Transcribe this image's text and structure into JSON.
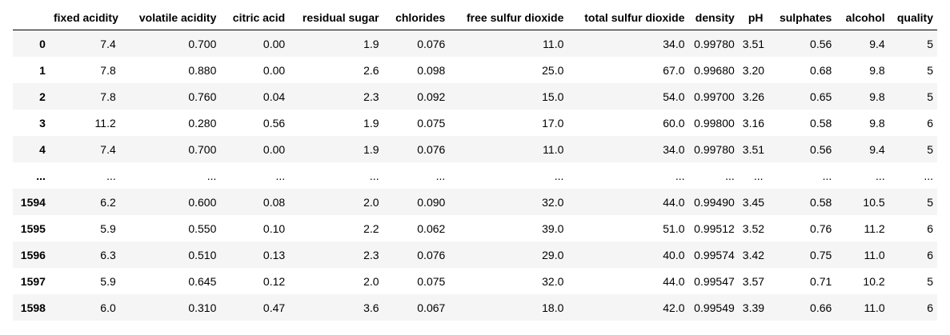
{
  "table": {
    "columns": [
      "",
      "fixed acidity",
      "volatile acidity",
      "citric acid",
      "residual sugar",
      "chlorides",
      "free sulfur dioxide",
      "total sulfur dioxide",
      "density",
      "pH",
      "sulphates",
      "alcohol",
      "quality"
    ],
    "rows": [
      {
        "index": "0",
        "cells": [
          "7.4",
          "0.700",
          "0.00",
          "1.9",
          "0.076",
          "11.0",
          "34.0",
          "0.99780",
          "3.51",
          "0.56",
          "9.4",
          "5"
        ]
      },
      {
        "index": "1",
        "cells": [
          "7.8",
          "0.880",
          "0.00",
          "2.6",
          "0.098",
          "25.0",
          "67.0",
          "0.99680",
          "3.20",
          "0.68",
          "9.8",
          "5"
        ]
      },
      {
        "index": "2",
        "cells": [
          "7.8",
          "0.760",
          "0.04",
          "2.3",
          "0.092",
          "15.0",
          "54.0",
          "0.99700",
          "3.26",
          "0.65",
          "9.8",
          "5"
        ]
      },
      {
        "index": "3",
        "cells": [
          "11.2",
          "0.280",
          "0.56",
          "1.9",
          "0.075",
          "17.0",
          "60.0",
          "0.99800",
          "3.16",
          "0.58",
          "9.8",
          "6"
        ]
      },
      {
        "index": "4",
        "cells": [
          "7.4",
          "0.700",
          "0.00",
          "1.9",
          "0.076",
          "11.0",
          "34.0",
          "0.99780",
          "3.51",
          "0.56",
          "9.4",
          "5"
        ]
      },
      {
        "index": "...",
        "cells": [
          "...",
          "...",
          "...",
          "...",
          "...",
          "...",
          "...",
          "...",
          "...",
          "...",
          "...",
          "..."
        ]
      },
      {
        "index": "1594",
        "cells": [
          "6.2",
          "0.600",
          "0.08",
          "2.0",
          "0.090",
          "32.0",
          "44.0",
          "0.99490",
          "3.45",
          "0.58",
          "10.5",
          "5"
        ]
      },
      {
        "index": "1595",
        "cells": [
          "5.9",
          "0.550",
          "0.10",
          "2.2",
          "0.062",
          "39.0",
          "51.0",
          "0.99512",
          "3.52",
          "0.76",
          "11.2",
          "6"
        ]
      },
      {
        "index": "1596",
        "cells": [
          "6.3",
          "0.510",
          "0.13",
          "2.3",
          "0.076",
          "29.0",
          "40.0",
          "0.99574",
          "3.42",
          "0.75",
          "11.0",
          "6"
        ]
      },
      {
        "index": "1597",
        "cells": [
          "5.9",
          "0.645",
          "0.12",
          "2.0",
          "0.075",
          "32.0",
          "44.0",
          "0.99547",
          "3.57",
          "0.71",
          "10.2",
          "5"
        ]
      },
      {
        "index": "1598",
        "cells": [
          "6.0",
          "0.310",
          "0.47",
          "3.6",
          "0.067",
          "18.0",
          "42.0",
          "0.99549",
          "3.39",
          "0.66",
          "11.0",
          "6"
        ]
      }
    ]
  }
}
